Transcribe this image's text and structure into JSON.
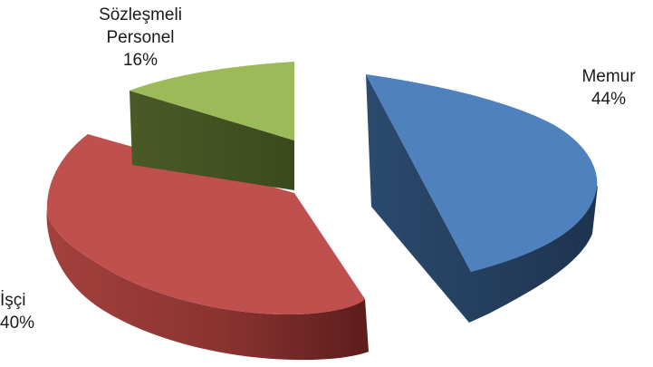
{
  "chart_data": {
    "type": "pie",
    "title": "",
    "slices": [
      {
        "label_lines": [
          "Memur"
        ],
        "percent_label": "44%",
        "value": 44,
        "top_color": "#4f81bd",
        "side_color": "#26405e"
      },
      {
        "label_lines": [
          "İşçi"
        ],
        "percent_label": "40%",
        "value": 40,
        "top_color": "#c0504d",
        "side_color": "#7a2a28"
      },
      {
        "label_lines": [
          "Sözleşmeli",
          "Personel"
        ],
        "percent_label": "16%",
        "value": 16,
        "top_color": "#9bbb59",
        "side_color": "#4d5e2a"
      }
    ],
    "exploded": true,
    "style": "3d"
  }
}
